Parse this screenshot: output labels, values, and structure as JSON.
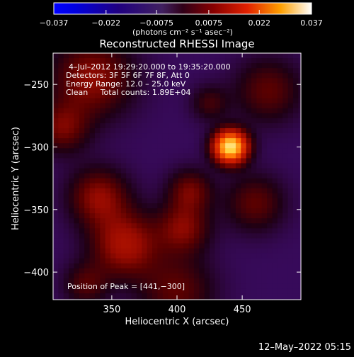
{
  "chart_data": {
    "type": "heatmap",
    "title": "Reconstructed RHESSI Image",
    "xlabel": "Heliocentric X (arcsec)",
    "ylabel": "Heliocentric Y (arcsec)",
    "xlim": [
      305,
      495
    ],
    "ylim": [
      -422,
      -225
    ],
    "x_ticks": [
      350,
      400,
      450
    ],
    "y_ticks": [
      -250,
      -300,
      -350,
      -400
    ],
    "x_tick_labels": [
      "350",
      "400",
      "450"
    ],
    "y_tick_labels": [
      "−250",
      "−300",
      "−350",
      "−400"
    ],
    "colorbar": {
      "range": [
        -0.037,
        0.037
      ],
      "ticks": [
        -0.037,
        -0.022,
        -0.0075,
        0.0075,
        0.022,
        0.037
      ],
      "tick_labels": [
        "−0.037",
        "−0.022",
        "−0.0075",
        "0.0075",
        "0.022",
        "0.037"
      ],
      "unit_label": "(photons cm⁻² s⁻¹ asec⁻²)",
      "colormap": "rainbow-fire"
    },
    "annotations": {
      "time_range": "4–Jul–2012 19:29:20.000 to 19:35:20.000",
      "detectors": "Detectors: 3F 5F 6F 7F 8F, Att 0",
      "energy_range": "Energy Range: 12.0 – 25.0 keV",
      "clean_counts": "Clean     Total counts: 1.89E+04",
      "peak_position": "Position of Peak = [441,−300]"
    },
    "peak": {
      "x": 441,
      "y": -300,
      "value": 0.037
    },
    "sources": [
      {
        "x": 441,
        "y": -300,
        "sigma": 9,
        "amp": 0.037
      },
      {
        "x": 335,
        "y": -245,
        "sigma": 22,
        "amp": 0.011
      },
      {
        "x": 312,
        "y": -285,
        "sigma": 14,
        "amp": 0.009
      },
      {
        "x": 340,
        "y": -340,
        "sigma": 16,
        "amp": 0.011
      },
      {
        "x": 360,
        "y": -378,
        "sigma": 18,
        "amp": 0.013
      },
      {
        "x": 405,
        "y": -365,
        "sigma": 14,
        "amp": 0.01
      },
      {
        "x": 410,
        "y": -335,
        "sigma": 12,
        "amp": 0.009
      },
      {
        "x": 460,
        "y": -345,
        "sigma": 16,
        "amp": 0.008
      },
      {
        "x": 470,
        "y": -255,
        "sigma": 18,
        "amp": 0.008
      },
      {
        "x": 400,
        "y": -415,
        "sigma": 20,
        "amp": 0.008
      },
      {
        "x": 330,
        "y": -410,
        "sigma": 12,
        "amp": 0.007
      },
      {
        "x": 425,
        "y": -265,
        "sigma": 10,
        "amp": 0.006
      }
    ],
    "background_level": -0.004
  },
  "footer": {
    "timestamp": "12–May–2022 05:15"
  },
  "colors": {
    "background": "#000000",
    "text": "#ffffff"
  }
}
